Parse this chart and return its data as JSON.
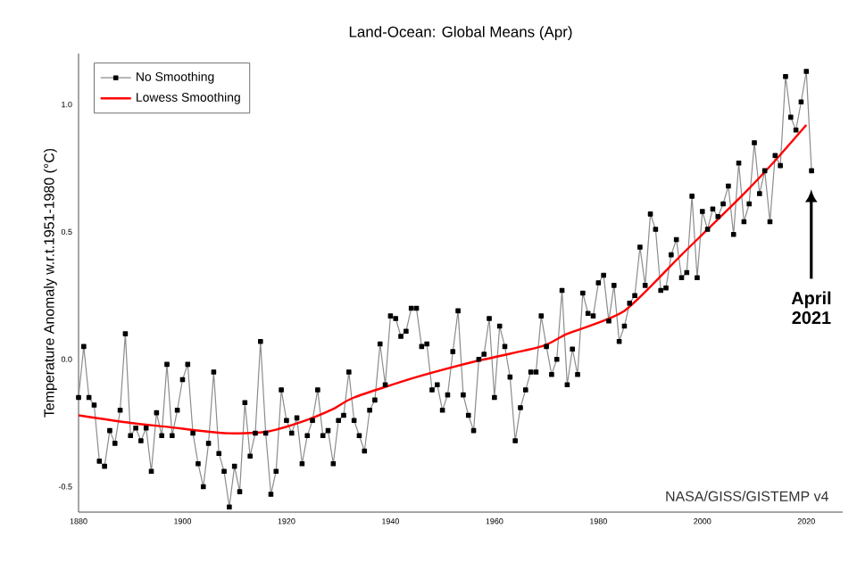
{
  "chart_data": {
    "type": "line",
    "title": "Land-Ocean: Global Means (Apr)",
    "ylabel": "Temperature Anomaly w.r.t.1951-1980 (°C)",
    "xlim": [
      1880,
      2027
    ],
    "ylim": [
      -0.6,
      1.2
    ],
    "xticks": [
      1880,
      1900,
      1920,
      1940,
      1960,
      1980,
      2000,
      2020
    ],
    "yticks": [
      {
        "value": -0.5,
        "label": "-0.5"
      },
      {
        "value": 0,
        "label": "0.0"
      },
      {
        "value": 0.5,
        "label": "0.5"
      },
      {
        "value": 1,
        "label": "1.0"
      }
    ],
    "legend": "top left",
    "grid": false,
    "line_style": "solid",
    "series": [
      {
        "name": "No Smoothing",
        "color": "#000000",
        "marker": "square",
        "x": [
          1880,
          1881,
          1882,
          1883,
          1884,
          1885,
          1886,
          1887,
          1888,
          1889,
          1890,
          1891,
          1892,
          1893,
          1894,
          1895,
          1896,
          1897,
          1898,
          1899,
          1900,
          1901,
          1902,
          1903,
          1904,
          1905,
          1906,
          1907,
          1908,
          1909,
          1910,
          1911,
          1912,
          1913,
          1914,
          1915,
          1916,
          1917,
          1918,
          1919,
          1920,
          1921,
          1922,
          1923,
          1924,
          1925,
          1926,
          1927,
          1928,
          1929,
          1930,
          1931,
          1932,
          1933,
          1934,
          1935,
          1936,
          1937,
          1938,
          1939,
          1940,
          1941,
          1942,
          1943,
          1944,
          1945,
          1946,
          1947,
          1948,
          1949,
          1950,
          1951,
          1952,
          1953,
          1954,
          1955,
          1956,
          1957,
          1958,
          1959,
          1960,
          1961,
          1962,
          1963,
          1964,
          1965,
          1966,
          1967,
          1968,
          1969,
          1970,
          1971,
          1972,
          1973,
          1974,
          1975,
          1976,
          1977,
          1978,
          1979,
          1980,
          1981,
          1982,
          1983,
          1984,
          1985,
          1986,
          1987,
          1988,
          1989,
          1990,
          1991,
          1992,
          1993,
          1994,
          1995,
          1996,
          1997,
          1998,
          1999,
          2000,
          2001,
          2002,
          2003,
          2004,
          2005,
          2006,
          2007,
          2008,
          2009,
          2010,
          2011,
          2012,
          2013,
          2014,
          2015,
          2016,
          2017,
          2018,
          2019,
          2020,
          2021
        ],
        "values": [
          -0.15,
          0.05,
          -0.15,
          -0.18,
          -0.4,
          -0.42,
          -0.28,
          -0.33,
          -0.2,
          0.1,
          -0.3,
          -0.27,
          -0.32,
          -0.27,
          -0.44,
          -0.21,
          -0.3,
          -0.02,
          -0.3,
          -0.2,
          -0.08,
          -0.02,
          -0.29,
          -0.41,
          -0.5,
          -0.33,
          -0.05,
          -0.37,
          -0.44,
          -0.58,
          -0.42,
          -0.52,
          -0.17,
          -0.38,
          -0.29,
          0.07,
          -0.29,
          -0.53,
          -0.44,
          -0.12,
          -0.24,
          -0.29,
          -0.23,
          -0.41,
          -0.3,
          -0.24,
          -0.12,
          -0.3,
          -0.28,
          -0.41,
          -0.24,
          -0.22,
          -0.05,
          -0.24,
          -0.3,
          -0.36,
          -0.2,
          -0.16,
          0.06,
          -0.1,
          0.17,
          0.16,
          0.09,
          0.11,
          0.2,
          0.2,
          0.05,
          0.06,
          -0.12,
          -0.1,
          -0.2,
          -0.14,
          0.03,
          0.19,
          -0.14,
          -0.22,
          -0.28,
          0,
          0.02,
          0.16,
          -0.15,
          0.13,
          0.05,
          -0.07,
          -0.32,
          -0.19,
          -0.12,
          -0.05,
          -0.05,
          0.17,
          0.05,
          -0.06,
          0,
          0.27,
          -0.1,
          0.04,
          -0.06,
          0.26,
          0.18,
          0.17,
          0.3,
          0.33,
          0.15,
          0.29,
          0.07,
          0.13,
          0.22,
          0.25,
          0.44,
          0.29,
          0.57,
          0.51,
          0.27,
          0.28,
          0.41,
          0.47,
          0.32,
          0.34,
          0.64,
          0.32,
          0.58,
          0.51,
          0.59,
          0.56,
          0.61,
          0.68,
          0.49,
          0.77,
          0.54,
          0.61,
          0.85,
          0.65,
          0.74,
          0.54,
          0.8,
          0.76,
          1.11,
          0.95,
          0.9,
          1.01,
          1.13,
          0.74
        ]
      },
      {
        "name": "Lowess Smoothing",
        "color": "#ff0000",
        "marker": "none",
        "x": [
          1880,
          1890,
          1897,
          1908,
          1916,
          1923,
          1929,
          1933,
          1945,
          1956,
          1969,
          1974,
          1985,
          1996,
          2008,
          2014,
          2020
        ],
        "values": [
          -0.22,
          -0.25,
          -0.265,
          -0.29,
          -0.285,
          -0.245,
          -0.195,
          -0.15,
          -0.07,
          -0.01,
          0.05,
          0.1,
          0.19,
          0.41,
          0.65,
          0.78,
          0.92
        ]
      }
    ],
    "annotations": [
      "April 2021",
      "NASA/GISS/GISTEMP v4"
    ]
  }
}
